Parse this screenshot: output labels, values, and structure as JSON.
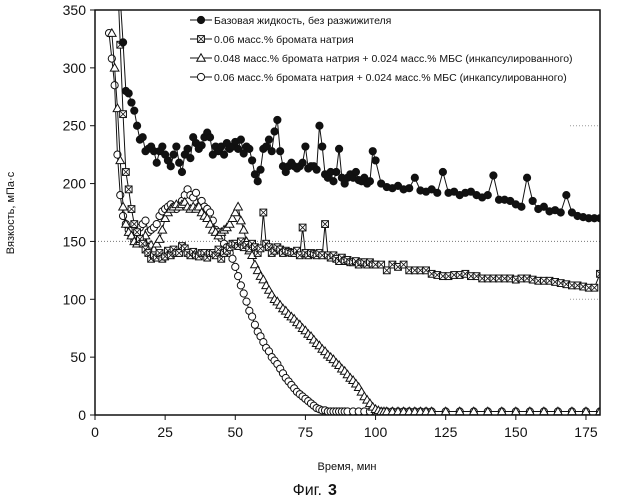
{
  "caption": {
    "prefix": "Фиг.",
    "number": "3"
  },
  "chart_data": {
    "type": "line",
    "title": "",
    "xlabel": "Время, мин",
    "ylabel": "Вязкость, мПа·с",
    "xlim": [
      0,
      180
    ],
    "ylim": [
      0,
      350
    ],
    "xticks": [
      "0",
      "25",
      "50",
      "75",
      "100",
      "125",
      "150",
      "175"
    ],
    "yticks": [
      "0",
      "50",
      "100",
      "150",
      "200",
      "250",
      "300",
      "350"
    ],
    "grid": "dotted horizontal at 150 only",
    "legend_position": "top-right",
    "series": [
      {
        "name": "Базовая жидкость, без разжижителя",
        "marker": "filled-circle",
        "x": [
          8,
          9,
          10,
          11,
          12,
          13,
          14,
          15,
          16,
          17,
          18,
          19,
          20,
          21,
          22,
          23,
          24,
          25,
          26,
          27,
          28,
          29,
          30,
          31,
          32,
          33,
          34,
          35,
          36,
          37,
          38,
          39,
          40,
          41,
          42,
          43,
          44,
          45,
          46,
          47,
          48,
          49,
          50,
          51,
          52,
          53,
          54,
          55,
          56,
          57,
          58,
          59,
          60,
          61,
          62,
          63,
          64,
          65,
          66,
          67,
          68,
          69,
          70,
          71,
          72,
          73,
          74,
          75,
          76,
          77,
          78,
          79,
          80,
          81,
          82,
          83,
          84,
          85,
          86,
          87,
          88,
          89,
          90,
          91,
          92,
          93,
          94,
          95,
          96,
          97,
          98,
          99,
          100,
          102,
          104,
          106,
          108,
          110,
          112,
          114,
          116,
          118,
          120,
          122,
          124,
          126,
          128,
          130,
          132,
          134,
          136,
          138,
          140,
          142,
          144,
          146,
          148,
          150,
          152,
          154,
          156,
          158,
          160,
          162,
          164,
          166,
          168,
          170,
          172,
          174,
          176,
          178,
          180
        ],
        "values": [
          400,
          360,
          322,
          280,
          278,
          270,
          263,
          250,
          238,
          240,
          228,
          230,
          232,
          228,
          218,
          228,
          232,
          225,
          220,
          215,
          225,
          232,
          218,
          210,
          225,
          230,
          222,
          240,
          235,
          230,
          233,
          240,
          244,
          240,
          225,
          232,
          228,
          232,
          225,
          235,
          230,
          232,
          236,
          230,
          238,
          226,
          232,
          230,
          220,
          208,
          202,
          212,
          230,
          232,
          238,
          228,
          245,
          255,
          228,
          215,
          210,
          215,
          218,
          215,
          213,
          215,
          218,
          232,
          213,
          215,
          215,
          212,
          250,
          232,
          208,
          205,
          210,
          202,
          210,
          230,
          205,
          200,
          205,
          208,
          205,
          210,
          203,
          202,
          205,
          200,
          202,
          228,
          220,
          200,
          197,
          196,
          198,
          195,
          196,
          205,
          194,
          193,
          195,
          192,
          210,
          192,
          193,
          190,
          192,
          193,
          190,
          188,
          190,
          207,
          186,
          186,
          185,
          182,
          180,
          205,
          185,
          178,
          180,
          176,
          177,
          175,
          190,
          175,
          172,
          171,
          170,
          170,
          170
        ]
      },
      {
        "name": "0.06 масс.% бромата натрия",
        "marker": "square-cross",
        "x": [
          8,
          9,
          10,
          11,
          12,
          13,
          14,
          15,
          16,
          17,
          18,
          19,
          20,
          21,
          22,
          23,
          24,
          25,
          26,
          27,
          28,
          29,
          30,
          31,
          32,
          33,
          34,
          35,
          36,
          37,
          38,
          39,
          40,
          41,
          42,
          43,
          44,
          45,
          46,
          47,
          48,
          49,
          50,
          51,
          52,
          53,
          54,
          55,
          56,
          57,
          58,
          59,
          60,
          61,
          62,
          63,
          64,
          65,
          66,
          67,
          68,
          69,
          70,
          71,
          72,
          73,
          74,
          75,
          76,
          77,
          78,
          79,
          80,
          81,
          82,
          83,
          84,
          85,
          86,
          87,
          88,
          89,
          90,
          91,
          92,
          93,
          94,
          95,
          96,
          97,
          98,
          99,
          100,
          102,
          104,
          106,
          108,
          110,
          112,
          114,
          116,
          118,
          120,
          122,
          124,
          126,
          128,
          130,
          132,
          134,
          136,
          138,
          140,
          142,
          144,
          146,
          148,
          150,
          152,
          154,
          156,
          158,
          160,
          162,
          164,
          166,
          168,
          170,
          172,
          174,
          176,
          178,
          180
        ],
        "values": [
          380,
          320,
          260,
          210,
          195,
          178,
          165,
          158,
          152,
          148,
          143,
          140,
          135,
          138,
          136,
          140,
          135,
          137,
          142,
          138,
          143,
          140,
          140,
          146,
          144,
          140,
          138,
          141,
          138,
          137,
          140,
          140,
          136,
          140,
          140,
          138,
          143,
          135,
          140,
          142,
          145,
          148,
          148,
          146,
          150,
          145,
          147,
          144,
          148,
          145,
          140,
          144,
          175,
          148,
          145,
          140,
          142,
          145,
          143,
          140,
          142,
          141,
          140,
          140,
          142,
          138,
          162,
          140,
          138,
          140,
          139,
          138,
          140,
          138,
          165,
          138,
          136,
          138,
          135,
          133,
          136,
          133,
          134,
          132,
          132,
          133,
          130,
          132,
          132,
          130,
          132,
          130,
          130,
          130,
          125,
          130,
          128,
          130,
          125,
          125,
          125,
          125,
          122,
          121,
          120,
          120,
          121,
          121,
          122,
          120,
          120,
          118,
          118,
          118,
          118,
          118,
          118,
          117,
          118,
          118,
          117,
          116,
          116,
          116,
          115,
          114,
          113,
          112,
          112,
          111,
          110,
          110,
          122
        ]
      },
      {
        "name": "0.048 масс.% бромата натрия + 0.024 масс.% МБС (инкапсулированного)",
        "marker": "open-triangle",
        "x": [
          6,
          7,
          8,
          9,
          10,
          11,
          12,
          13,
          14,
          15,
          16,
          17,
          18,
          19,
          20,
          21,
          22,
          23,
          24,
          25,
          26,
          27,
          28,
          29,
          30,
          31,
          32,
          33,
          34,
          35,
          36,
          37,
          38,
          39,
          40,
          41,
          42,
          43,
          44,
          45,
          46,
          47,
          48,
          49,
          50,
          51,
          52,
          53,
          54,
          55,
          56,
          57,
          58,
          59,
          60,
          61,
          62,
          63,
          64,
          65,
          66,
          67,
          68,
          69,
          70,
          71,
          72,
          73,
          74,
          75,
          76,
          77,
          78,
          79,
          80,
          81,
          82,
          83,
          84,
          85,
          86,
          87,
          88,
          89,
          90,
          91,
          92,
          93,
          94,
          95,
          96,
          97,
          98,
          99,
          100,
          101,
          102,
          103,
          104,
          106,
          108,
          110,
          112,
          114,
          116,
          118,
          120,
          125,
          130,
          135,
          140,
          145,
          150,
          155,
          160,
          165,
          170,
          175,
          180
        ],
        "values": [
          330,
          300,
          265,
          220,
          180,
          165,
          158,
          155,
          150,
          148,
          150,
          152,
          155,
          145,
          147,
          143,
          148,
          152,
          160,
          170,
          175,
          178,
          180,
          182,
          180,
          182,
          184,
          180,
          178,
          180,
          178,
          180,
          175,
          172,
          170,
          165,
          160,
          158,
          155,
          158,
          160,
          162,
          165,
          170,
          175,
          180,
          168,
          160,
          150,
          142,
          138,
          130,
          125,
          120,
          117,
          112,
          108,
          104,
          100,
          98,
          95,
          92,
          90,
          87,
          85,
          83,
          80,
          78,
          75,
          73,
          70,
          68,
          65,
          62,
          60,
          57,
          55,
          52,
          50,
          48,
          45,
          43,
          40,
          38,
          35,
          32,
          30,
          27,
          24,
          20,
          16,
          13,
          10,
          7,
          5,
          4,
          3,
          3,
          3,
          3,
          3,
          3,
          3,
          3,
          3,
          3,
          3,
          3,
          3,
          3,
          3,
          3,
          3,
          3,
          3,
          3,
          3,
          3,
          3
        ]
      },
      {
        "name": "0.06 масс.% бромата натрия + 0.024 масс.% МБС (инкапсулированного)",
        "marker": "open-circle",
        "x": [
          5,
          6,
          7,
          8,
          9,
          10,
          11,
          12,
          13,
          14,
          15,
          16,
          17,
          18,
          19,
          20,
          21,
          22,
          23,
          24,
          25,
          26,
          27,
          28,
          29,
          30,
          31,
          32,
          33,
          34,
          35,
          36,
          37,
          38,
          39,
          40,
          41,
          42,
          43,
          44,
          45,
          46,
          47,
          48,
          49,
          50,
          51,
          52,
          53,
          54,
          55,
          56,
          57,
          58,
          59,
          60,
          61,
          62,
          63,
          64,
          65,
          66,
          67,
          68,
          69,
          70,
          71,
          72,
          73,
          74,
          75,
          76,
          77,
          78,
          79,
          80,
          81,
          82,
          83,
          84,
          85,
          86,
          87,
          88,
          89,
          90,
          92,
          94,
          96,
          98,
          100,
          102,
          104,
          106,
          108,
          110,
          112,
          114,
          116,
          118,
          120,
          125,
          130,
          135,
          140,
          145,
          150,
          155,
          160,
          165,
          170,
          175,
          180
        ],
        "values": [
          330,
          308,
          285,
          225,
          190,
          172,
          165,
          160,
          155,
          150,
          155,
          162,
          165,
          168,
          158,
          160,
          162,
          165,
          172,
          176,
          178,
          180,
          182,
          180,
          178,
          180,
          185,
          190,
          195,
          190,
          188,
          192,
          180,
          185,
          180,
          178,
          175,
          168,
          160,
          158,
          153,
          148,
          145,
          140,
          135,
          128,
          120,
          112,
          105,
          98,
          90,
          85,
          78,
          72,
          68,
          63,
          58,
          55,
          50,
          47,
          44,
          40,
          36,
          32,
          29,
          26,
          23,
          20,
          18,
          16,
          14,
          12,
          10,
          8,
          6,
          5,
          4,
          4,
          3,
          3,
          3,
          3,
          3,
          3,
          3,
          3,
          3,
          3,
          3,
          3,
          3,
          3,
          3,
          3,
          3,
          3,
          3,
          3,
          3,
          3,
          3,
          3,
          3,
          3,
          3,
          3,
          3,
          3,
          3,
          3,
          3,
          3,
          3
        ]
      }
    ]
  }
}
